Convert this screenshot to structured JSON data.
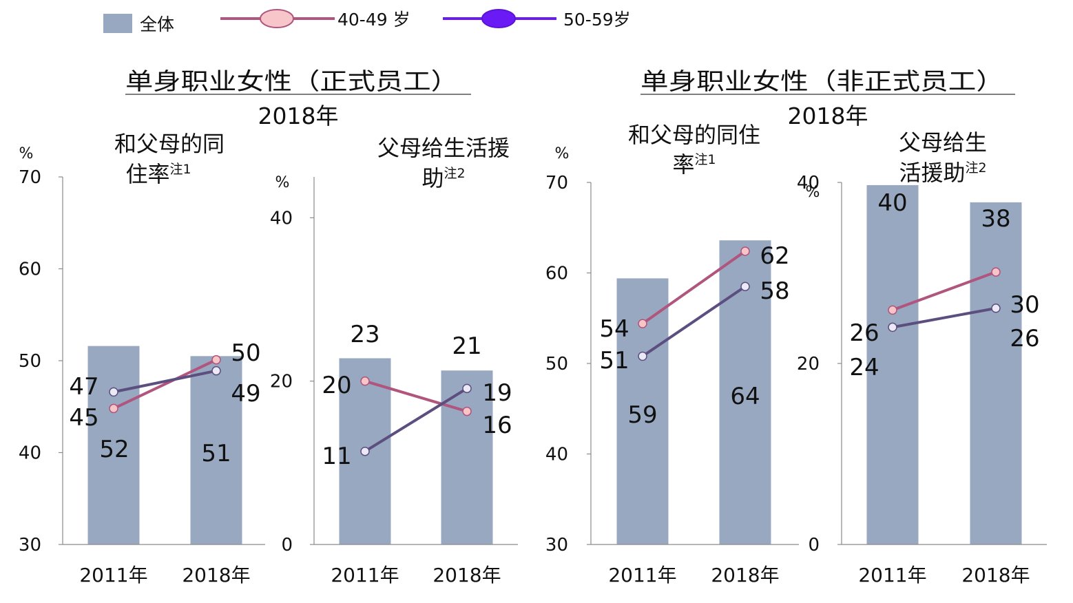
{
  "legend": {
    "items": [
      {
        "label": "全体",
        "kind": "bar",
        "color": "#97A8C0"
      },
      {
        "label": "40-49 岁",
        "kind": "line",
        "color": "#B0557D",
        "marker_fill": "#F6C6CA"
      },
      {
        "label": "50-59岁",
        "kind": "line",
        "color": "#6A1BF5",
        "marker_fill": "#6A1BF5"
      }
    ]
  },
  "sections": [
    {
      "title": "单身职业女性（正式员工）",
      "year": "2018年"
    },
    {
      "title": "单身职业女性（非正式员工）",
      "year": "2018年"
    }
  ],
  "series_style": {
    "bar_color": "#97A8C0",
    "line_40_color": "#B0557D",
    "marker_40_fill": "#F7C4C8",
    "line_50_color": "#5C4F80",
    "marker_50_fill": "#ECE9F6"
  },
  "chart_data": [
    {
      "type": "bar",
      "title": "和父母的同住率",
      "note": "注1",
      "ylabel": "%",
      "ylim": [
        30,
        70
      ],
      "yticks": [
        30,
        40,
        50,
        60,
        70
      ],
      "categories": [
        "2011年",
        "2018年"
      ],
      "series": [
        {
          "name": "全体",
          "type": "bar",
          "values": [
            51.6,
            50.5
          ],
          "labels": [
            "52",
            "51"
          ]
        },
        {
          "name": "40-49 岁",
          "type": "line",
          "values": [
            44.8,
            50.1
          ],
          "labels": [
            "45",
            "50"
          ]
        },
        {
          "name": "50-59岁",
          "type": "line",
          "values": [
            46.6,
            48.9
          ],
          "labels": [
            "47",
            "49"
          ]
        }
      ]
    },
    {
      "type": "bar",
      "title": "父母给生活援助",
      "note": "注2",
      "ylabel": "%",
      "ylim": [
        0,
        45
      ],
      "yticks": [
        0,
        20,
        40
      ],
      "categories": [
        "2011年",
        "2018年"
      ],
      "series": [
        {
          "name": "全体",
          "type": "bar",
          "values": [
            22.8,
            21.3
          ],
          "labels": [
            "23",
            "21"
          ]
        },
        {
          "name": "40-49 岁",
          "type": "line",
          "values": [
            20.0,
            16.3
          ],
          "labels": [
            "20",
            "16"
          ]
        },
        {
          "name": "50-59岁",
          "type": "line",
          "values": [
            11.4,
            19.1
          ],
          "labels": [
            "11",
            "19"
          ]
        }
      ]
    },
    {
      "type": "bar",
      "title": "和父母的同住率",
      "note": "注1",
      "ylabel": "%",
      "ylim": [
        30,
        70
      ],
      "yticks": [
        30,
        40,
        50,
        60,
        70
      ],
      "categories": [
        "2011年",
        "2018年"
      ],
      "series": [
        {
          "name": "全体",
          "type": "bar",
          "values": [
            59.4,
            63.6
          ],
          "labels": [
            "59",
            "64"
          ]
        },
        {
          "name": "40-49 岁",
          "type": "line",
          "values": [
            54.4,
            62.4
          ],
          "labels": [
            "54",
            "62"
          ]
        },
        {
          "name": "50-59岁",
          "type": "line",
          "values": [
            50.8,
            58.5
          ],
          "labels": [
            "51",
            "58"
          ]
        }
      ]
    },
    {
      "type": "bar",
      "title": "父母给生活援助",
      "note": "注2",
      "ylabel": "%",
      "ylim": [
        0,
        40
      ],
      "yticks": [
        0,
        20,
        40
      ],
      "categories": [
        "2011年",
        "2018年"
      ],
      "series": [
        {
          "name": "全体",
          "type": "bar",
          "values": [
            39.7,
            37.8
          ],
          "labels": [
            "40",
            "38"
          ]
        },
        {
          "name": "40-49 岁",
          "type": "line",
          "values": [
            25.9,
            30.1
          ],
          "labels": [
            "26",
            "30"
          ]
        },
        {
          "name": "50-59岁",
          "type": "line",
          "values": [
            24.0,
            26.1
          ],
          "labels": [
            "24",
            "26"
          ]
        }
      ]
    }
  ]
}
